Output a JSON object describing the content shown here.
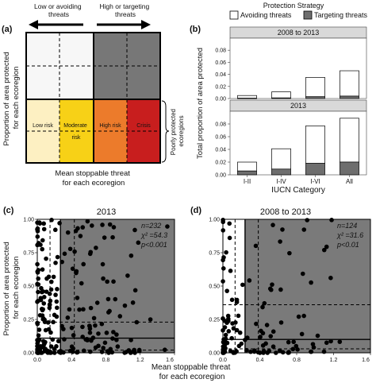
{
  "chart_data": [
    {
      "panel": "(a)",
      "type": "heatmap",
      "arrow_left_label": [
        "Low or avoiding",
        "threats"
      ],
      "arrow_right_label": [
        "High or targeting",
        "threats"
      ],
      "ylabel": [
        "Proportion of area protected",
        "for each ecoregion"
      ],
      "xlabel": [
        "Mean stoppable threat",
        "for each ecoregion"
      ],
      "brace_label": [
        "Poorly protected",
        "ecoregions"
      ],
      "cells": [
        {
          "label": [
            "Low risk"
          ],
          "color": "#fdf0c2"
        },
        {
          "label": [
            "Moderate",
            "risk"
          ],
          "color": "#f7d117"
        },
        {
          "label": [
            "High risk"
          ],
          "color": "#ec7b2b"
        },
        {
          "label": [
            "Crisis"
          ],
          "color": "#c81e1e"
        }
      ],
      "top_colors": {
        "left": "#f7f7f7",
        "right": "#777777"
      }
    },
    {
      "panel": "(b)",
      "type": "bar",
      "legend_title": "Protection Strategy",
      "legend": [
        {
          "name": "Avoiding threats",
          "color": "#ffffff"
        },
        {
          "name": "Targeting threats",
          "color": "#6e6e6e"
        }
      ],
      "ylabel": "Total proportion of area protected",
      "xlabel": "IUCN Category",
      "categories": [
        "I-II",
        "I-IV",
        "I-VI",
        "All"
      ],
      "ylim": [
        0,
        0.1
      ],
      "ytick_labels": [
        "0.00",
        "0.02",
        "0.04",
        "0.06",
        "0.08"
      ],
      "facets": [
        {
          "title": "2008 to 2013",
          "series": [
            {
              "name": "Targeting threats",
              "values": [
                0.0005,
                0.001,
                0.003,
                0.004
              ]
            },
            {
              "name": "Avoiding threats",
              "values": [
                0.0045,
                0.01,
                0.032,
                0.042
              ]
            }
          ]
        },
        {
          "title": "2013",
          "series": [
            {
              "name": "Targeting threats",
              "values": [
                0.006,
                0.009,
                0.018,
                0.02
              ]
            },
            {
              "name": "Avoiding threats",
              "values": [
                0.014,
                0.032,
                0.059,
                0.069
              ]
            }
          ]
        }
      ]
    },
    {
      "panel": "(c)",
      "type": "scatter",
      "title": "2013",
      "ytick_labels": [
        "0.00",
        "0.25",
        "0.50",
        "0.75",
        "1.00"
      ],
      "xtick_labels": [
        "0.0",
        "0.4",
        "0.8",
        "1.2",
        "1.6"
      ],
      "ylabel": [
        "Proportion of area protected",
        "for each ecoregion"
      ],
      "stats": [
        "n=232",
        "χ² =54.3",
        "p<0.001"
      ],
      "threshold_x": 0.27,
      "thresholds_y": [
        0.02,
        0.11,
        0.23
      ],
      "n_points": 232,
      "seed": 7
    },
    {
      "panel": "(d)",
      "type": "scatter",
      "title": "2008 to 2013",
      "ytick_labels": [
        "0.00",
        "0.25",
        "0.50",
        "0.75",
        "1.00"
      ],
      "xtick_labels": [
        "0.0",
        "0.4",
        "0.8",
        "1.2",
        "1.6"
      ],
      "stats": [
        "n=124",
        "χ² =31.6",
        "p<0.01"
      ],
      "threshold_x": 0.24,
      "thresholds_y": [
        0.03,
        0.1,
        0.36
      ],
      "n_points": 124,
      "seed": 19
    }
  ],
  "bottom_xlabel": [
    "Mean stoppable threat",
    "for each ecoregion"
  ]
}
